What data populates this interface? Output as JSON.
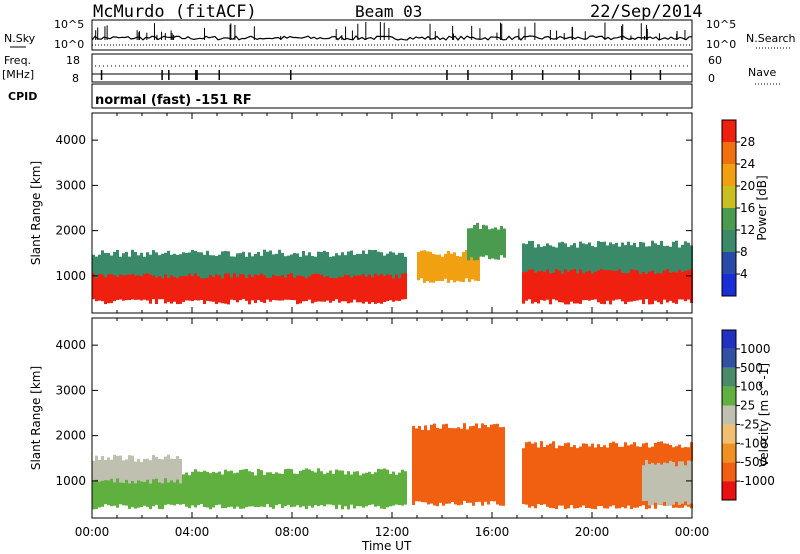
{
  "header": {
    "station": "McMurdo (fitACF)",
    "beam": "Beam 03",
    "date": "22/Sep/2014"
  },
  "top_panel": {
    "left_label": "N.Sky",
    "right_label": "N.Search",
    "ticks_left_top": "10^5",
    "ticks_left_bottom": "10^0",
    "ticks_right_top": "10^5",
    "ticks_right_bottom": "10^0"
  },
  "freq_panel": {
    "left_label": "Freq.",
    "left_unit": "[MHz]",
    "right_label": "Nave",
    "left_ticks": [
      "18",
      "8"
    ],
    "right_ticks": [
      "60",
      "0"
    ],
    "cpid_label": "CPID",
    "cpid_value": "normal (fast) -151 RF"
  },
  "colors": {
    "power_scale": [
      "#1a2ed8",
      "#2a4aa8",
      "#3a8a6a",
      "#4a9a50",
      "#c8c020",
      "#f0a010",
      "#f07010",
      "#f02010"
    ],
    "velocity_scale": [
      "#e81010",
      "#f06010",
      "#f09020",
      "#f0c070",
      "#c0c0b0",
      "#60b040",
      "#4a8a6a",
      "#3050a0",
      "#2030c0"
    ]
  },
  "chart_data": [
    {
      "type": "heatmap",
      "title": "Power",
      "ylabel": "Slant Range [km]",
      "ylim": [
        180,
        4600
      ],
      "y_ticks": [
        "1000",
        "2000",
        "3000",
        "4000"
      ],
      "colorbar_label": "Power [dB]",
      "colorbar_ticks": [
        "4",
        "8",
        "12",
        "16",
        "20",
        "24",
        "28"
      ],
      "colorbar_range": [
        0,
        32
      ],
      "x_ticks": [
        "00:00",
        "04:00",
        "08:00",
        "12:00",
        "16:00",
        "20:00",
        "00:00"
      ],
      "xlabel": "Time UT",
      "xlim": [
        0,
        24
      ],
      "regions": [
        {
          "t0": 0.0,
          "t1": 12.5,
          "r_low": 430,
          "r_high": 1200,
          "level": 28
        },
        {
          "t0": 0.0,
          "t1": 12.5,
          "r_low": 1000,
          "r_high": 1500,
          "level": 8
        },
        {
          "t0": 13.0,
          "t1": 15.5,
          "r_low": 900,
          "r_high": 1500,
          "level": 20
        },
        {
          "t0": 15.0,
          "t1": 16.5,
          "r_low": 1400,
          "r_high": 2100,
          "level": 12
        },
        {
          "t0": 17.2,
          "t1": 24.0,
          "r_low": 430,
          "r_high": 1300,
          "level": 28
        },
        {
          "t0": 17.2,
          "t1": 24.0,
          "r_low": 1100,
          "r_high": 1700,
          "level": 8
        }
      ]
    },
    {
      "type": "heatmap",
      "title": "Velocity",
      "ylabel": "Slant Range [km]",
      "ylim": [
        180,
        4600
      ],
      "y_ticks": [
        "1000",
        "2000",
        "3000",
        "4000"
      ],
      "colorbar_label": "Velocity [m s^-1]",
      "colorbar_ticks": [
        "1000",
        "500",
        "100",
        "25",
        "-25",
        "-100",
        "-500",
        "-1000"
      ],
      "x_ticks": [
        "00:00",
        "04:00",
        "08:00",
        "12:00",
        "16:00",
        "20:00",
        "00:00"
      ],
      "xlabel": "Time UT",
      "xlim": [
        0,
        24
      ],
      "regions": [
        {
          "t0": 0.0,
          "t1": 12.5,
          "r_low": 430,
          "r_high": 1200,
          "level": 80
        },
        {
          "t0": 0.0,
          "t1": 3.5,
          "r_low": 1000,
          "r_high": 1500,
          "level": 0
        },
        {
          "t0": 12.8,
          "t1": 16.5,
          "r_low": 500,
          "r_high": 2200,
          "level": -200
        },
        {
          "t0": 17.2,
          "t1": 24.0,
          "r_low": 430,
          "r_high": 1800,
          "level": -200
        },
        {
          "t0": 22.0,
          "t1": 24.0,
          "r_low": 500,
          "r_high": 1400,
          "level": 0
        }
      ]
    }
  ]
}
